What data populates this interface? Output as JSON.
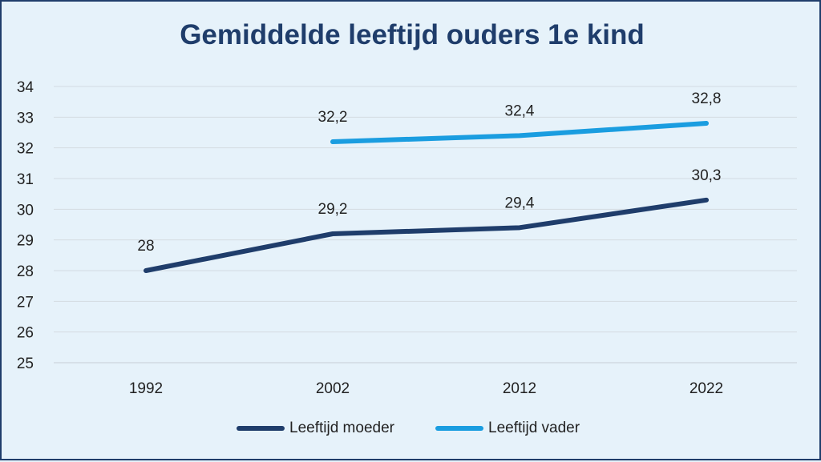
{
  "chart_data": {
    "type": "line",
    "title": "Gemiddelde leeftijd ouders 1e kind",
    "categories": [
      "1992",
      "2002",
      "2012",
      "2022"
    ],
    "series": [
      {
        "name": "Leeftijd moeder",
        "color": "#1f3d6b",
        "values": [
          28,
          29.2,
          29.4,
          30.3
        ],
        "labels": [
          "28",
          "29,2",
          "29,4",
          "30,3"
        ]
      },
      {
        "name": "Leeftijd vader",
        "color": "#1a9de0",
        "values": [
          null,
          32.2,
          32.4,
          32.8
        ],
        "labels": [
          "",
          "32,2",
          "32,4",
          "32,8"
        ]
      }
    ],
    "ylim": [
      25,
      34
    ],
    "yticks": [
      "25",
      "26",
      "27",
      "28",
      "29",
      "30",
      "31",
      "32",
      "33",
      "34"
    ],
    "grid": true,
    "legend": "bottom"
  }
}
